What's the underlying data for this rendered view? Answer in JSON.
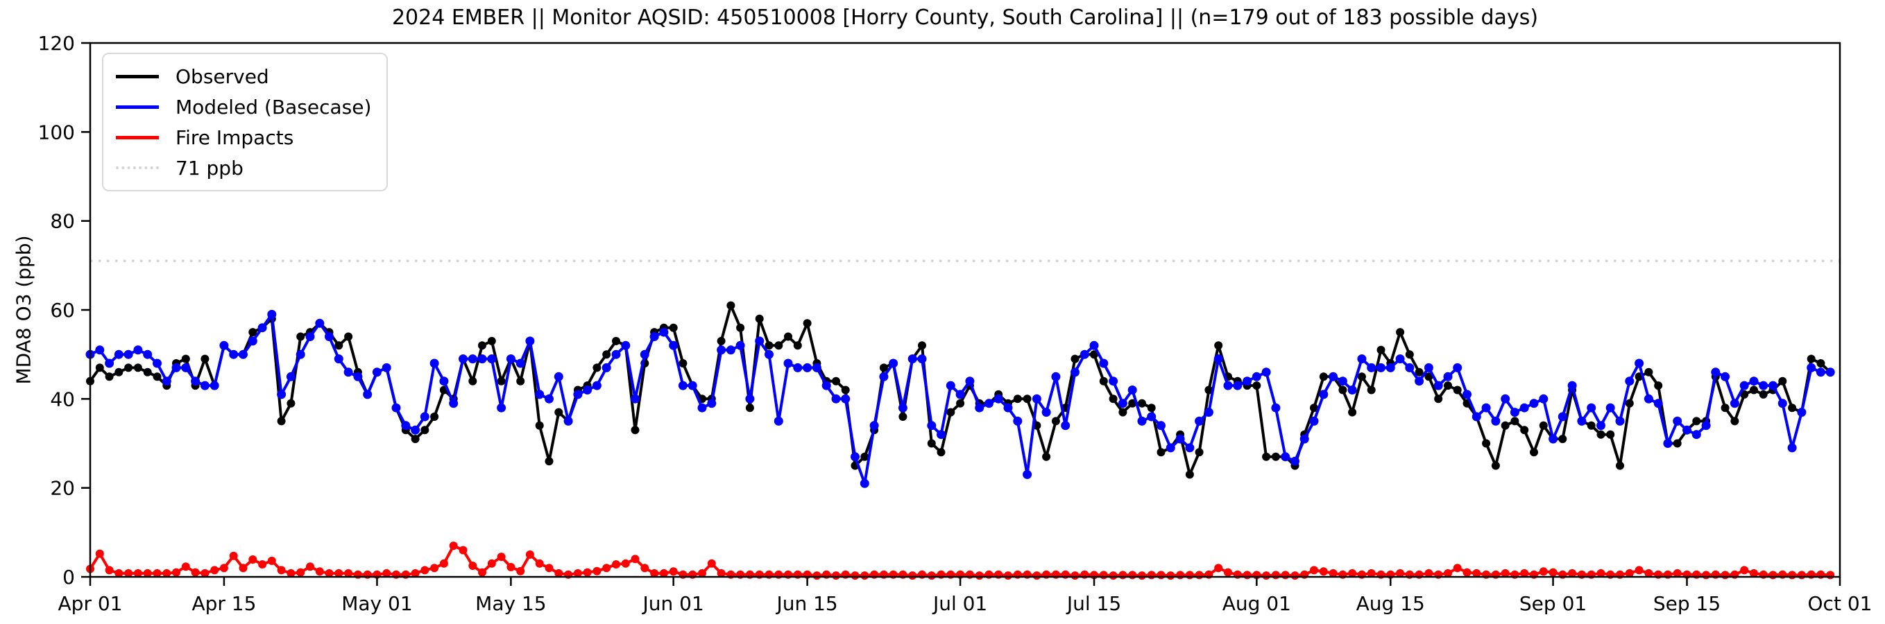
{
  "chart_data": {
    "type": "line",
    "title": "2024 EMBER || Monitor AQSID: 450510008 [Horry County, South Carolina] || (n=179 out of 183 possible days)",
    "ylabel": "MDA8 O3 (ppb)",
    "xlabel": "",
    "ylim": [
      0,
      120
    ],
    "yticks": [
      0,
      20,
      40,
      60,
      80,
      100,
      120
    ],
    "x_range": [
      "Apr 01",
      "Oct 01"
    ],
    "x_unit": "day",
    "n_days_plotted": 183,
    "xtick_labels": [
      "Apr 01",
      "Apr 15",
      "May 01",
      "May 15",
      "Jun 01",
      "Jun 15",
      "Jul 01",
      "Jul 15",
      "Aug 01",
      "Aug 15",
      "Sep 01",
      "Sep 15",
      "Oct 01"
    ],
    "xtick_day_index": [
      0,
      14,
      30,
      44,
      61,
      75,
      91,
      105,
      122,
      136,
      153,
      167,
      183
    ],
    "grid": false,
    "legend_position": "upper left",
    "reference_line": {
      "label": "71 ppb",
      "value": 71,
      "color": "#d3d3d3",
      "style": "dotted"
    },
    "series": [
      {
        "name": "Observed",
        "color": "#000000",
        "values": [
          44,
          47,
          45,
          46,
          47,
          47,
          46,
          45,
          43,
          48,
          49,
          43,
          49,
          43,
          52,
          50,
          50,
          55,
          56,
          58,
          35,
          39,
          54,
          55,
          57,
          55,
          52,
          54,
          46,
          41,
          46,
          47,
          38,
          33,
          31,
          33,
          36,
          42,
          40,
          49,
          44,
          52,
          53,
          44,
          49,
          44,
          53,
          34,
          26,
          37,
          35,
          42,
          43,
          47,
          50,
          53,
          52,
          33,
          48,
          55,
          56,
          56,
          48,
          43,
          40,
          40,
          53,
          61,
          56,
          38,
          58,
          52,
          52,
          54,
          52,
          57,
          48,
          44,
          44,
          42,
          25,
          27,
          33,
          47,
          48,
          36,
          49,
          52,
          30,
          28,
          37,
          39,
          43,
          39,
          39,
          41,
          39,
          40,
          40,
          34,
          27,
          35,
          38,
          49,
          50,
          50,
          44,
          40,
          37,
          39,
          39,
          38,
          28,
          29,
          32,
          23,
          28,
          42,
          52,
          45,
          44,
          43,
          43,
          27,
          27,
          27,
          25,
          32,
          38,
          45,
          45,
          42,
          37,
          45,
          42,
          51,
          48,
          55,
          50,
          46,
          45,
          40,
          43,
          42,
          39,
          36,
          30,
          25,
          34,
          35,
          33,
          28,
          34,
          31,
          31,
          42,
          35,
          34,
          32,
          32,
          25,
          39,
          45,
          46,
          43,
          30,
          30,
          33,
          35,
          35,
          45,
          38,
          35,
          41,
          42,
          41,
          42,
          44,
          38,
          37,
          49,
          48,
          46
        ]
      },
      {
        "name": "Modeled (Basecase)",
        "color": "#0000ff",
        "values": [
          50,
          51,
          48,
          50,
          50,
          51,
          50,
          48,
          44,
          47,
          47,
          44,
          43,
          43,
          52,
          50,
          50,
          53,
          56,
          59,
          41,
          45,
          50,
          54,
          57,
          54,
          49,
          46,
          45,
          41,
          46,
          47,
          38,
          34,
          33,
          36,
          48,
          44,
          39,
          49,
          49,
          49,
          49,
          38,
          49,
          48,
          53,
          41,
          40,
          45,
          35,
          41,
          42,
          43,
          47,
          50,
          52,
          40,
          50,
          54,
          55,
          52,
          43,
          43,
          38,
          39,
          51,
          51,
          52,
          40,
          53,
          50,
          35,
          48,
          47,
          47,
          47,
          43,
          40,
          40,
          27,
          21,
          34,
          45,
          48,
          38,
          49,
          49,
          34,
          32,
          43,
          41,
          44,
          38,
          39,
          40,
          38,
          35,
          23,
          40,
          37,
          45,
          34,
          46,
          50,
          52,
          48,
          44,
          39,
          42,
          35,
          36,
          34,
          29,
          31,
          29,
          35,
          37,
          49,
          43,
          43,
          44,
          45,
          46,
          38,
          27,
          26,
          31,
          35,
          41,
          45,
          44,
          42,
          49,
          47,
          47,
          47,
          49,
          47,
          44,
          47,
          43,
          45,
          47,
          41,
          36,
          38,
          35,
          40,
          37,
          38,
          39,
          40,
          31,
          36,
          43,
          35,
          38,
          34,
          38,
          35,
          44,
          48,
          40,
          39,
          30,
          35,
          33,
          32,
          34,
          46,
          45,
          39,
          43,
          44,
          43,
          43,
          39,
          29,
          37,
          47,
          46,
          46
        ]
      },
      {
        "name": "Fire Impacts",
        "color": "#ff0000",
        "values": [
          1.8,
          5.2,
          1.5,
          0.8,
          0.8,
          0.8,
          0.8,
          0.8,
          0.8,
          1,
          2.3,
          1,
          0.8,
          1.5,
          2,
          4.7,
          2,
          3.9,
          2.8,
          3.6,
          1.5,
          0.8,
          1,
          2.3,
          1.2,
          0.8,
          0.8,
          0.8,
          0.5,
          0.5,
          0.5,
          0.8,
          0.5,
          0.5,
          0.8,
          1.5,
          2,
          3,
          7,
          6,
          2.5,
          1,
          3,
          4.5,
          2.2,
          1.3,
          5,
          3,
          2,
          0.8,
          0.5,
          0.8,
          1,
          1.3,
          2,
          2.8,
          3,
          4,
          2,
          0.8,
          0.8,
          1.2,
          0.5,
          0.5,
          0.8,
          3,
          0.8,
          0.5,
          0.5,
          0.5,
          0.5,
          0.5,
          0.5,
          0.5,
          0.5,
          0.5,
          0.3,
          0.5,
          0.3,
          0.5,
          0.3,
          0.3,
          0.5,
          0.5,
          0.5,
          0.5,
          0.3,
          0.5,
          0.3,
          0.5,
          0.5,
          0.5,
          0.5,
          0.3,
          0.5,
          0.5,
          0.3,
          0.5,
          0.5,
          0.3,
          0.5,
          0.5,
          0.5,
          0.3,
          0.5,
          0.4,
          0.4,
          0.3,
          0.4,
          0.4,
          0.3,
          0.4,
          0.4,
          0.3,
          0.4,
          0.4,
          0.4,
          0.5,
          2,
          1,
          0.5,
          0.4,
          0.4,
          0.3,
          0.4,
          0.4,
          0.3,
          0.5,
          1.5,
          1.2,
          0.8,
          0.5,
          0.8,
          0.5,
          0.8,
          0.5,
          0.5,
          0.8,
          0.5,
          0.5,
          0.8,
          0.5,
          0.8,
          2,
          1,
          0.8,
          0.5,
          0.5,
          0.8,
          0.5,
          0.8,
          0.5,
          1.2,
          1,
          0.5,
          0.8,
          0.5,
          0.5,
          0.8,
          0.5,
          0.5,
          0.8,
          1.5,
          0.8,
          0.5,
          0.5,
          0.8,
          0.5,
          0.5,
          0.4,
          0.5,
          0.4,
          0.5,
          1.5,
          0.8,
          0.5,
          0.4,
          0.5,
          0.4,
          0.4,
          0.5,
          0.5,
          0.4
        ]
      }
    ],
    "legend": {
      "entries": [
        {
          "label": "Observed",
          "color": "#000000",
          "style": "solid"
        },
        {
          "label": "Modeled (Basecase)",
          "color": "#0000ff",
          "style": "solid"
        },
        {
          "label": "Fire Impacts",
          "color": "#ff0000",
          "style": "solid"
        },
        {
          "label": "71 ppb",
          "color": "#d3d3d3",
          "style": "dotted"
        }
      ]
    }
  },
  "layout_colors": {
    "background": "#ffffff",
    "axis": "#000000",
    "tick_label": "#000000"
  }
}
